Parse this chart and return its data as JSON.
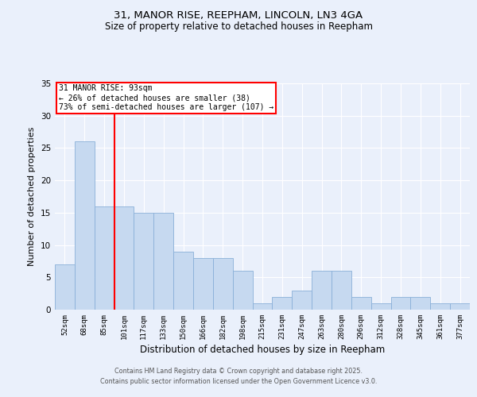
{
  "title_line1": "31, MANOR RISE, REEPHAM, LINCOLN, LN3 4GA",
  "title_line2": "Size of property relative to detached houses in Reepham",
  "xlabel": "Distribution of detached houses by size in Reepham",
  "ylabel": "Number of detached properties",
  "categories": [
    "52sqm",
    "68sqm",
    "85sqm",
    "101sqm",
    "117sqm",
    "133sqm",
    "150sqm",
    "166sqm",
    "182sqm",
    "198sqm",
    "215sqm",
    "231sqm",
    "247sqm",
    "263sqm",
    "280sqm",
    "296sqm",
    "312sqm",
    "328sqm",
    "345sqm",
    "361sqm",
    "377sqm"
  ],
  "values": [
    7,
    26,
    16,
    16,
    15,
    15,
    9,
    8,
    8,
    6,
    1,
    2,
    3,
    6,
    6,
    2,
    1,
    2,
    2,
    1,
    1
  ],
  "bar_color": "#c6d9f0",
  "bar_edge_color": "#8ab0d8",
  "bg_color": "#eaf0fb",
  "grid_color": "#ffffff",
  "red_line_x": 2.5,
  "annotation_text": "31 MANOR RISE: 93sqm\n← 26% of detached houses are smaller (38)\n73% of semi-detached houses are larger (107) →",
  "ylim": [
    0,
    35
  ],
  "yticks": [
    0,
    5,
    10,
    15,
    20,
    25,
    30,
    35
  ],
  "footer_line1": "Contains HM Land Registry data © Crown copyright and database right 2025.",
  "footer_line2": "Contains public sector information licensed under the Open Government Licence v3.0."
}
